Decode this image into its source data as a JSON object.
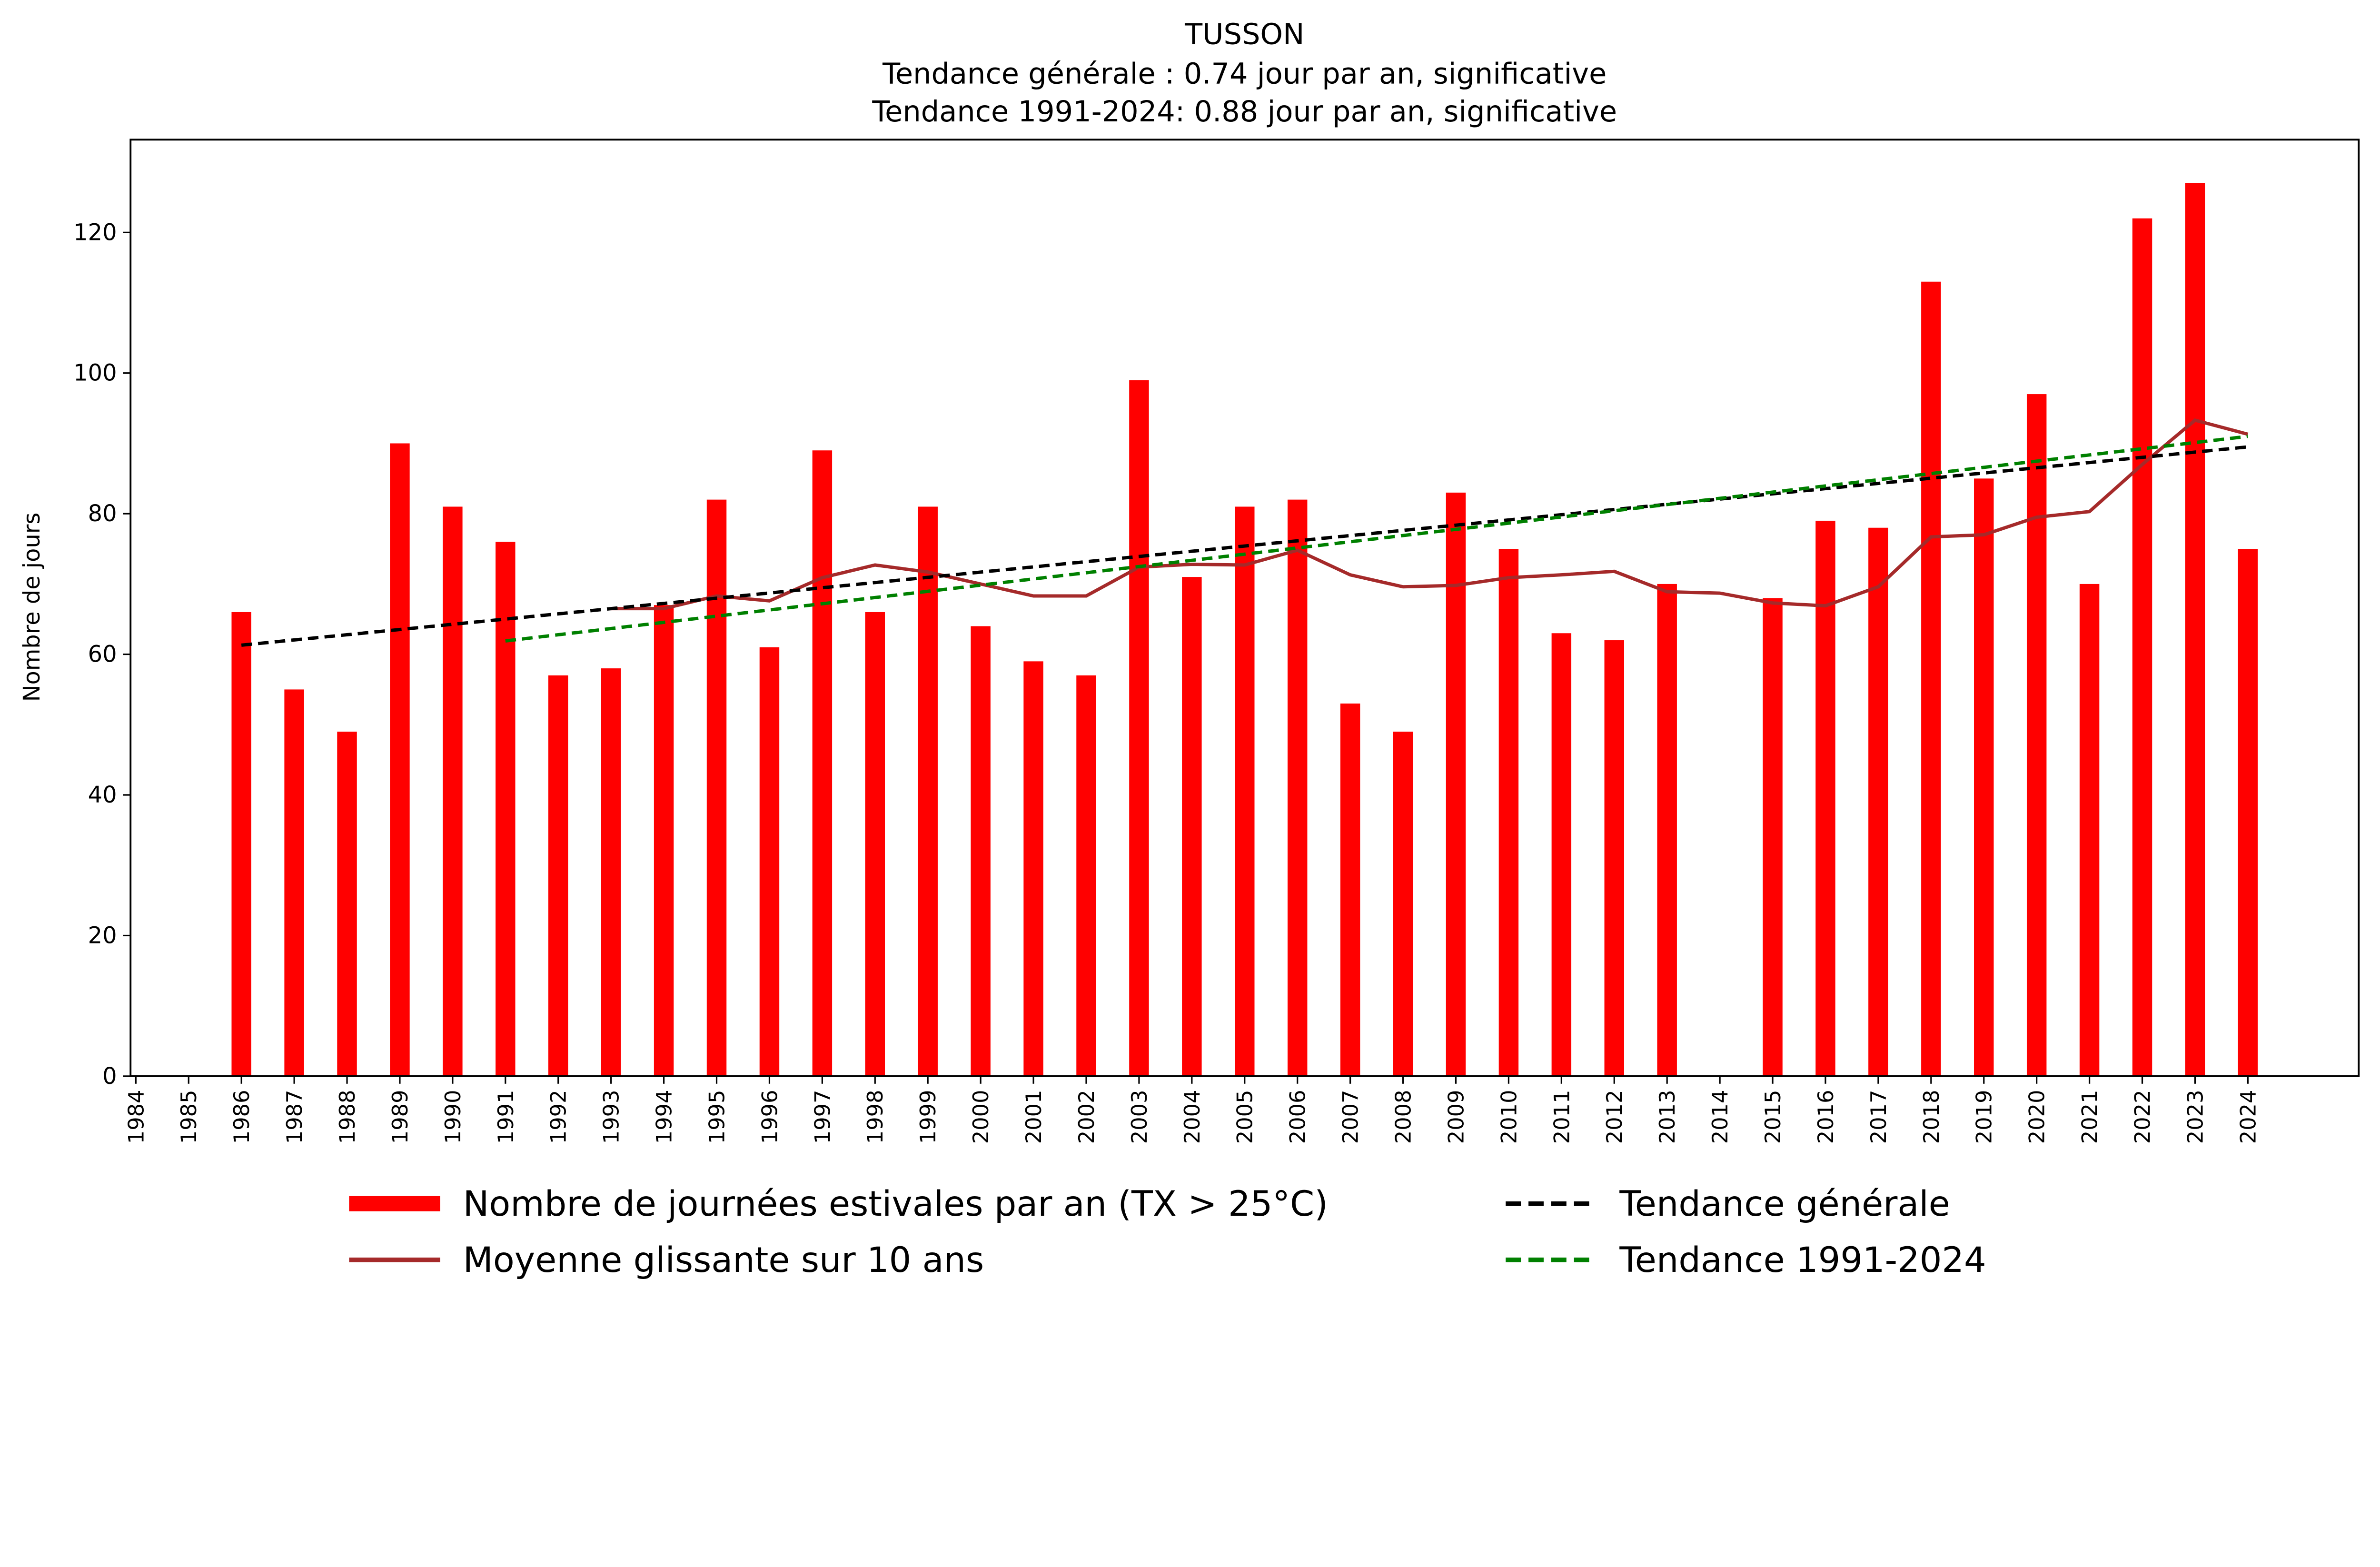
{
  "chart_data": {
    "type": "bar",
    "title": [
      "TUSSON",
      "Tendance générale : 0.74 jour par an, significative",
      "Tendance 1991-2024: 0.88 jour par an, significative"
    ],
    "xlabel": "",
    "ylabel": "Nombre de jours",
    "ylim": [
      0,
      133.2
    ],
    "xlim": [
      1983.9,
      2026.1
    ],
    "yticks": [
      0,
      20,
      40,
      60,
      80,
      100,
      120
    ],
    "categories": [
      1984,
      1985,
      1986,
      1987,
      1988,
      1989,
      1990,
      1991,
      1992,
      1993,
      1994,
      1995,
      1996,
      1997,
      1998,
      1999,
      2000,
      2001,
      2002,
      2003,
      2004,
      2005,
      2006,
      2007,
      2008,
      2009,
      2010,
      2011,
      2012,
      2013,
      2014,
      2015,
      2016,
      2017,
      2018,
      2019,
      2020,
      2021,
      2022,
      2023,
      2024
    ],
    "series": [
      {
        "name": "Nombre de journées estivales par an (TX > 25°C)",
        "type": "bar",
        "color": "#ff0000",
        "values": [
          null,
          null,
          66,
          55,
          49,
          90,
          81,
          76,
          57,
          58,
          67,
          82,
          61,
          89,
          66,
          81,
          64,
          59,
          57,
          99,
          71,
          81,
          82,
          53,
          49,
          83,
          75,
          63,
          62,
          70,
          null,
          68,
          79,
          78,
          113,
          85,
          97,
          70,
          122,
          127,
          75
        ]
      },
      {
        "name": "Moyenne glissante sur 10 ans",
        "type": "line",
        "color": "#a52a2a",
        "values": [
          null,
          null,
          null,
          null,
          null,
          null,
          null,
          null,
          null,
          66.5,
          66.5,
          68.3,
          67.6,
          70.9,
          72.7,
          71.7,
          70.0,
          68.3,
          68.3,
          72.4,
          72.8,
          72.7,
          74.8,
          71.3,
          69.6,
          69.8,
          70.9,
          71.3,
          71.8,
          68.9,
          68.7,
          67.3,
          66.9,
          69.6,
          76.7,
          77.0,
          79.5,
          80.3,
          87.0,
          93.3,
          91.3
        ]
      },
      {
        "name": "Tendance générale",
        "type": "trend",
        "color": "#000000",
        "x": [
          1986,
          2024
        ],
        "y": [
          61.3,
          89.5
        ]
      },
      {
        "name": "Tendance 1991-2024",
        "type": "trend",
        "color": "#008000",
        "x": [
          1991,
          2024
        ],
        "y": [
          61.9,
          91.0
        ]
      }
    ],
    "legend_placement": "bottom"
  }
}
